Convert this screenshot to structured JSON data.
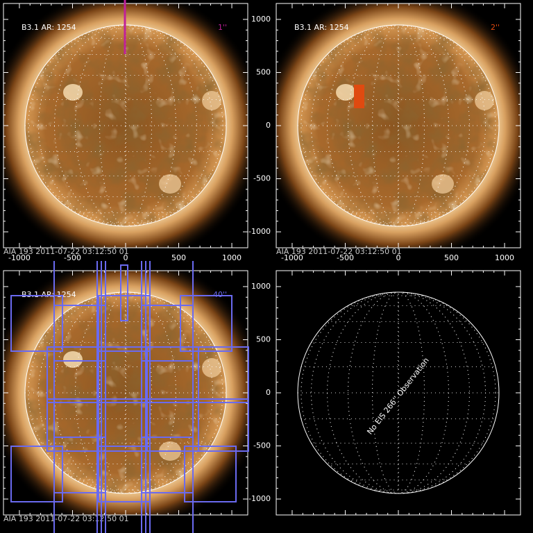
{
  "panels": [
    {
      "label": "B3.1 AR: 1254",
      "slit": "1''",
      "slit_color": "#c0209a",
      "footer": "AIA 193  2011-07-22 03:12:50 01",
      "xticks": [
        -1000,
        -500,
        0,
        500,
        1000
      ]
    },
    {
      "label": "B3.1 AR: 1254",
      "slit": "2''",
      "slit_color": "#e04a10",
      "footer": "AIA 193  2011-07-22 03:12:50 01",
      "xticks": [
        -1000,
        -500,
        0,
        500,
        1000
      ],
      "yticks": [
        1000,
        500,
        0,
        -500,
        -1000
      ]
    },
    {
      "label": "B3.1 AR: 1254",
      "slit": "40''",
      "slit_color": "#6a6af0",
      "footer": "AIA 193  2011-07-22 03:12:50 01"
    },
    {
      "message": "No EIS 266'' Observation",
      "yticks": [
        1000,
        500,
        0,
        -500,
        -1000
      ]
    }
  ]
}
